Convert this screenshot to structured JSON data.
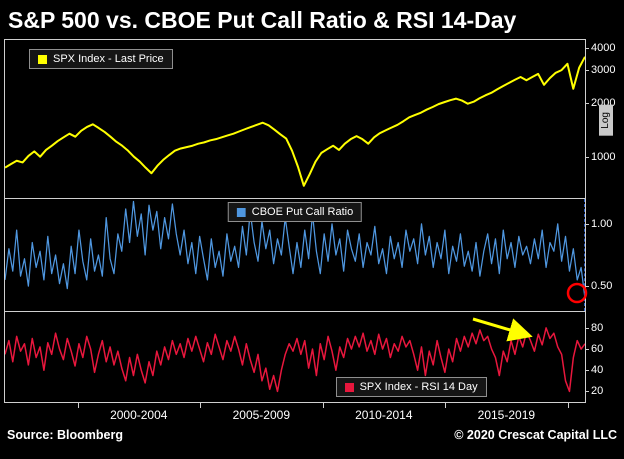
{
  "title": "S&P 500 vs. CBOE Put Call Ratio & RSI 14-Day",
  "footer": {
    "source": "Source: Bloomberg",
    "copyright": "© 2020 Crescat Capital LLC"
  },
  "annotations": {
    "put_call_circle_color": "#ff0000",
    "rsi_arrow_color": "#ffff00"
  },
  "chart_data": {
    "type": "line",
    "background": "#000000",
    "x_range": [
      1997,
      2020.75
    ],
    "x_ticks": [
      2000,
      2005,
      2010,
      2015,
      2020
    ],
    "x_tick_labels": [
      "2000-2004",
      "2005-2009",
      "2010-2014",
      "2015-2019"
    ],
    "log_label": "Log",
    "legend_position": "inside",
    "grid": false,
    "panels": [
      {
        "name": "spx",
        "series": "SPX Index - Last Price",
        "color": "#ffff00",
        "scale": "log",
        "ylim": [
          600,
          4400
        ],
        "yticks": [
          {
            "v": 1000,
            "label": "1000"
          },
          {
            "v": 2000,
            "label": "2000"
          },
          {
            "v": 3000,
            "label": "3000"
          },
          {
            "v": 4000,
            "label": "4000"
          }
        ],
        "values": [
          880,
          920,
          960,
          940,
          1020,
          1080,
          1010,
          1100,
          1160,
          1230,
          1290,
          1350,
          1300,
          1400,
          1470,
          1520,
          1450,
          1380,
          1300,
          1220,
          1160,
          1090,
          1010,
          950,
          880,
          820,
          900,
          970,
          1030,
          1090,
          1120,
          1140,
          1160,
          1190,
          1210,
          1240,
          1260,
          1290,
          1320,
          1350,
          1390,
          1430,
          1470,
          1510,
          1550,
          1500,
          1420,
          1340,
          1270,
          1090,
          890,
          700,
          810,
          950,
          1060,
          1110,
          1160,
          1100,
          1190,
          1260,
          1310,
          1260,
          1190,
          1290,
          1360,
          1410,
          1460,
          1510,
          1580,
          1660,
          1710,
          1760,
          1830,
          1890,
          1960,
          2010,
          2060,
          2100,
          2050,
          1970,
          2020,
          2110,
          2190,
          2260,
          2360,
          2460,
          2560,
          2660,
          2760,
          2650,
          2760,
          2870,
          2500,
          2720,
          2910,
          3010,
          3260,
          2380,
          3100,
          3560
        ]
      },
      {
        "name": "put_call",
        "series": "CBOE Put Call Ratio",
        "color": "#4f97e0",
        "scale": "linear",
        "ylim": [
          0.3,
          1.2
        ],
        "yticks": [
          {
            "v": 0.5,
            "label": "0.50"
          },
          {
            "v": 1.0,
            "label": "1.00"
          }
        ],
        "values": [
          0.55,
          0.8,
          0.62,
          0.95,
          0.58,
          0.72,
          0.5,
          0.85,
          0.65,
          0.78,
          0.55,
          0.9,
          0.6,
          0.75,
          0.52,
          0.68,
          0.48,
          0.82,
          0.6,
          0.95,
          0.7,
          0.55,
          0.88,
          0.62,
          0.75,
          0.58,
          1.05,
          0.72,
          0.6,
          0.92,
          0.78,
          1.12,
          0.85,
          1.18,
          0.9,
          1.08,
          0.75,
          1.15,
          0.95,
          1.1,
          0.8,
          1.05,
          0.88,
          1.16,
          0.92,
          0.75,
          0.95,
          0.68,
          0.85,
          0.6,
          0.9,
          0.72,
          0.55,
          0.88,
          0.65,
          0.78,
          0.58,
          0.92,
          0.7,
          0.82,
          0.65,
          0.98,
          0.75,
          1.1,
          0.85,
          0.7,
          1.02,
          0.8,
          0.95,
          0.68,
          0.88,
          0.75,
          1.05,
          0.82,
          0.6,
          0.85,
          0.65,
          0.95,
          0.72,
          1.08,
          0.78,
          0.6,
          0.92,
          0.7,
          1.0,
          0.75,
          0.88,
          0.62,
          0.95,
          0.8,
          0.7,
          0.92,
          0.65,
          0.85,
          0.75,
          0.98,
          0.68,
          0.8,
          0.6,
          0.9,
          0.72,
          0.85,
          0.65,
          0.95,
          0.78,
          0.88,
          0.68,
          1.0,
          0.75,
          0.9,
          0.65,
          0.85,
          0.72,
          0.95,
          0.6,
          0.82,
          0.7,
          0.92,
          0.66,
          0.78,
          0.62,
          0.85,
          0.58,
          0.78,
          0.92,
          0.68,
          0.88,
          0.6,
          0.95,
          0.72,
          0.85,
          0.65,
          0.9,
          0.75,
          0.82,
          0.68,
          0.88,
          0.72,
          0.95,
          0.65,
          0.85,
          0.78,
          1.0,
          0.7,
          0.9,
          0.62,
          0.8,
          0.55,
          0.65,
          0.4
        ]
      },
      {
        "name": "rsi",
        "series": "SPX Index - RSI 14 Day",
        "color": "#e8173d",
        "scale": "linear",
        "ylim": [
          10,
          95
        ],
        "yticks": [
          {
            "v": 20,
            "label": "20"
          },
          {
            "v": 40,
            "label": "40"
          },
          {
            "v": 60,
            "label": "60"
          },
          {
            "v": 80,
            "label": "80"
          }
        ],
        "values": [
          55,
          68,
          48,
          72,
          58,
          65,
          45,
          70,
          52,
          62,
          40,
          66,
          55,
          75,
          60,
          50,
          70,
          58,
          44,
          65,
          52,
          72,
          60,
          38,
          55,
          68,
          48,
          62,
          45,
          58,
          42,
          30,
          52,
          35,
          55,
          40,
          28,
          48,
          35,
          58,
          45,
          62,
          50,
          68,
          55,
          65,
          52,
          70,
          58,
          72,
          60,
          48,
          66,
          55,
          74,
          62,
          50,
          68,
          58,
          72,
          60,
          45,
          65,
          50,
          38,
          55,
          30,
          42,
          22,
          35,
          20,
          40,
          55,
          65,
          58,
          70,
          55,
          68,
          42,
          60,
          35,
          65,
          50,
          72,
          58,
          40,
          62,
          52,
          70,
          60,
          72,
          62,
          75,
          58,
          68,
          55,
          74,
          60,
          70,
          52,
          65,
          58,
          72,
          62,
          68,
          55,
          40,
          62,
          35,
          58,
          45,
          68,
          52,
          38,
          60,
          48,
          70,
          58,
          72,
          62,
          75,
          65,
          78,
          68,
          72,
          60,
          52,
          35,
          58,
          48,
          68,
          55,
          72,
          62,
          76,
          68,
          58,
          74,
          64,
          80,
          70,
          75,
          62,
          55,
          30,
          20,
          52,
          68,
          60,
          65
        ]
      }
    ]
  }
}
